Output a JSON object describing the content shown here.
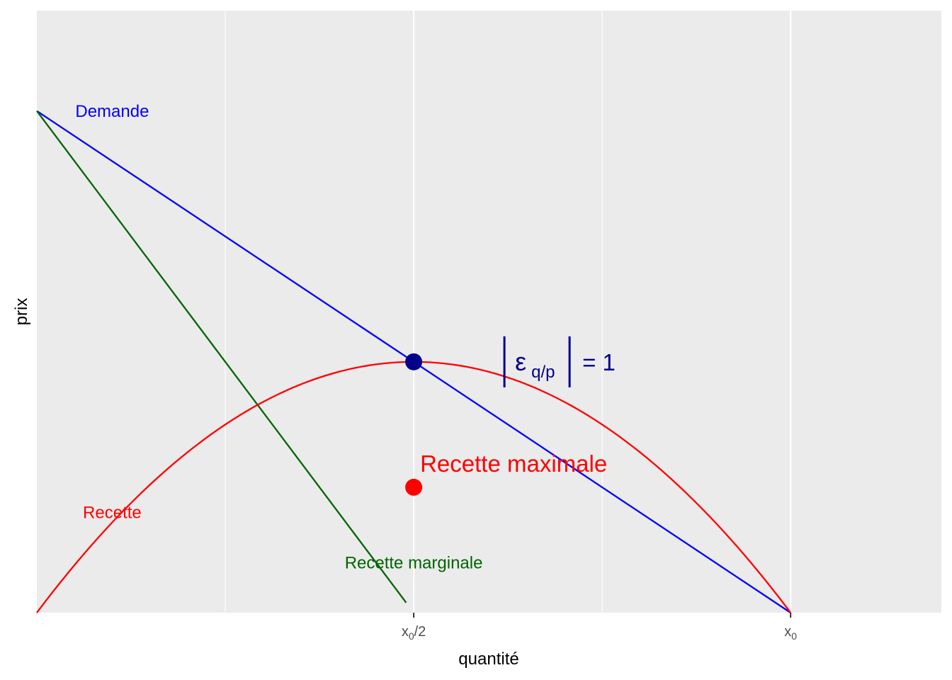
{
  "chart_data": {
    "type": "line",
    "title": "",
    "xlabel": "quantité",
    "ylabel": "prix",
    "x_ticks": [
      {
        "x": 1,
        "base": "x",
        "sub": "0",
        "suffix": "/2"
      },
      {
        "x": 2,
        "base": "x",
        "sub": "0",
        "suffix": ""
      }
    ],
    "xlim": [
      0,
      2.4
    ],
    "ylim": [
      0,
      2.4
    ],
    "grid": true,
    "series": [
      {
        "name": "Demande",
        "color": "#0000ff",
        "points": [
          [
            0,
            2
          ],
          [
            2,
            0
          ]
        ]
      },
      {
        "name": "Recette marginale",
        "color": "#006400",
        "points": [
          [
            0,
            2
          ],
          [
            0.98,
            0.04
          ]
        ]
      },
      {
        "name": "Recette",
        "color": "#ff0000",
        "points": [
          [
            0,
            0
          ],
          [
            0.25,
            0.4375
          ],
          [
            0.5,
            0.75
          ],
          [
            0.75,
            0.9375
          ],
          [
            1,
            1
          ],
          [
            1.25,
            0.9375
          ],
          [
            1.5,
            0.75
          ],
          [
            1.75,
            0.4375
          ],
          [
            2,
            0
          ]
        ]
      }
    ],
    "points": [
      {
        "x": 1,
        "y": 1,
        "color": "#00008b"
      },
      {
        "x": 1,
        "y": 0.5,
        "color": "#ff0000"
      }
    ],
    "annotations": [
      {
        "text": "Demande",
        "x": 0.2,
        "y": 2.0,
        "color": "#0000ff",
        "size": 24
      },
      {
        "text": "Recette",
        "x": 0.2,
        "y": 0.4,
        "color": "#ff0000",
        "size": 24
      },
      {
        "text": "Recette marginale",
        "x": 1.0,
        "y": 0.2,
        "color": "#006400",
        "size": 24
      },
      {
        "text": "Recette maximale",
        "x": 0.3,
        "y": 0.5,
        "color": "#ff0000",
        "size": 33,
        "dx": 10
      }
    ],
    "elasticity_label": {
      "symbol": "ε",
      "sub": "q/p",
      "rhs": "= 1",
      "color": "#00008b",
      "x": 1.25,
      "y": 1.0
    }
  }
}
